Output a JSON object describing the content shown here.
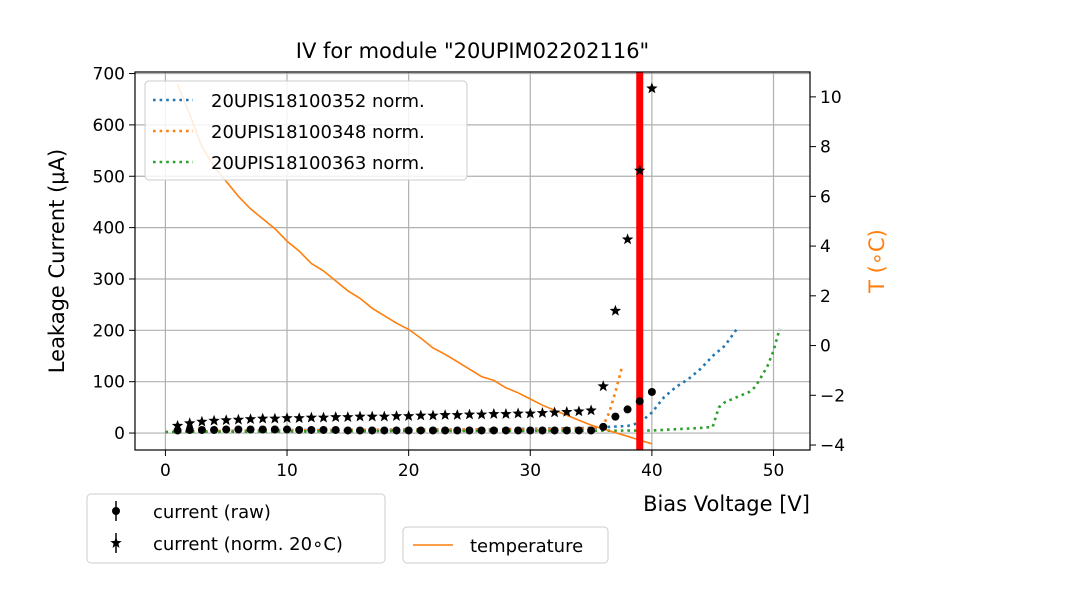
{
  "chart_data": {
    "type": "scatter",
    "title": "IV for module \"20UPIM02202116\"",
    "xlabel": "Bias Voltage [V]",
    "ylabel": "Leakage Current (μA)",
    "y2label": "T (∘C)",
    "xlim": [
      -2.5,
      53
    ],
    "ylim": [
      -33,
      703
    ],
    "y2lim": [
      -4.2,
      11.0
    ],
    "xticks": [
      0,
      10,
      20,
      30,
      40,
      50
    ],
    "yticks": [
      0,
      100,
      200,
      300,
      400,
      500,
      600,
      700
    ],
    "y2ticks": [
      -4,
      -2,
      0,
      2,
      4,
      6,
      8,
      10
    ],
    "grid": true,
    "breakdown_voltage_marker": {
      "x": 39,
      "color": "#ff0000"
    },
    "colors": {
      "blue": "#1f77b4",
      "orange": "#ff7f0e",
      "green": "#2ca02c",
      "black": "#000000",
      "red": "#ff0000"
    },
    "series": [
      {
        "name": "current (raw)",
        "kind": "points",
        "marker": "circle",
        "color": "#000000",
        "x": [
          1,
          2,
          3,
          4,
          5,
          6,
          7,
          8,
          9,
          10,
          11,
          12,
          13,
          14,
          15,
          16,
          17,
          18,
          19,
          20,
          21,
          22,
          23,
          24,
          25,
          26,
          27,
          28,
          29,
          30,
          31,
          32,
          33,
          34,
          35,
          36,
          37,
          38,
          39,
          40
        ],
        "y": [
          5,
          6,
          6,
          6,
          7,
          7,
          7,
          7,
          7,
          7,
          6,
          6,
          6,
          6,
          5,
          5,
          5,
          5,
          5,
          5,
          5,
          5,
          5,
          5,
          5,
          5,
          5,
          5,
          5,
          5,
          5,
          5,
          5,
          5,
          5,
          12,
          32,
          46,
          62,
          80
        ]
      },
      {
        "name": "current (norm. 20∘C)",
        "kind": "points",
        "marker": "star",
        "color": "#000000",
        "x": [
          1,
          2,
          3,
          4,
          5,
          6,
          7,
          8,
          9,
          10,
          11,
          12,
          13,
          14,
          15,
          16,
          17,
          18,
          19,
          20,
          21,
          22,
          23,
          24,
          25,
          26,
          27,
          28,
          29,
          30,
          31,
          32,
          33,
          34,
          35,
          36,
          37,
          38,
          39,
          40
        ],
        "y": [
          14,
          19,
          22,
          24,
          25,
          26,
          27,
          28,
          28,
          29,
          29,
          30,
          30,
          31,
          31,
          32,
          32,
          32,
          33,
          33,
          34,
          34,
          35,
          35,
          36,
          36,
          37,
          37,
          38,
          38,
          39,
          40,
          41,
          42,
          44,
          91,
          238,
          377,
          511,
          671
        ]
      },
      {
        "name": "20UPIS18100352 norm.",
        "kind": "line",
        "style": "dotted",
        "color": "#1f77b4",
        "x": [
          0,
          5,
          10,
          15,
          20,
          25,
          30,
          35,
          38,
          39,
          40,
          41,
          42,
          43,
          44,
          45,
          46,
          47
        ],
        "y": [
          2,
          4,
          6,
          6,
          7,
          7,
          8,
          10,
          14,
          20,
          40,
          70,
          90,
          105,
          125,
          150,
          170,
          203
        ]
      },
      {
        "name": "20UPIS18100348 norm.",
        "kind": "line",
        "style": "dotted",
        "color": "#ff7f0e",
        "x": [
          0,
          5,
          10,
          15,
          20,
          25,
          30,
          35,
          36,
          36.5,
          37,
          37.5
        ],
        "y": [
          2,
          4,
          5,
          6,
          6,
          7,
          7,
          9,
          15,
          40,
          80,
          125
        ]
      },
      {
        "name": "20UPIS18100363 norm.",
        "kind": "line",
        "style": "dotted",
        "color": "#2ca02c",
        "x": [
          0,
          10,
          20,
          30,
          40,
          44,
          45,
          45.5,
          46,
          47,
          48,
          48.5,
          49,
          49.5,
          50,
          50.5
        ],
        "y": [
          2,
          3,
          4,
          4,
          5,
          10,
          12,
          50,
          60,
          70,
          80,
          90,
          110,
          130,
          160,
          203
        ]
      },
      {
        "name": "temperature",
        "kind": "line",
        "style": "solid",
        "color": "#ff7f0e",
        "axis": "y2",
        "x": [
          1,
          2,
          3,
          4,
          5,
          6,
          7,
          8,
          9,
          10,
          11,
          12,
          13,
          14,
          15,
          16,
          17,
          18,
          19,
          20,
          21,
          22,
          23,
          24,
          25,
          26,
          27,
          28,
          29,
          30,
          31,
          32,
          33,
          34,
          35,
          36,
          37,
          38,
          39,
          40
        ],
        "y": [
          10.5,
          9.3,
          8.0,
          7.2,
          6.6,
          6.0,
          5.5,
          5.1,
          4.7,
          4.2,
          3.8,
          3.3,
          3.0,
          2.6,
          2.2,
          1.9,
          1.5,
          1.2,
          0.9,
          0.65,
          0.3,
          -0.1,
          -0.35,
          -0.65,
          -0.95,
          -1.25,
          -1.4,
          -1.7,
          -1.9,
          -2.15,
          -2.4,
          -2.6,
          -2.8,
          -3.0,
          -3.2,
          -3.35,
          -3.5,
          -3.65,
          -3.8,
          -3.95
        ]
      }
    ],
    "legends": {
      "upper": [
        "20UPIS18100352 norm.",
        "20UPIS18100348 norm.",
        "20UPIS18100363 norm."
      ],
      "lower_left": [
        "current (raw)",
        "current (norm. 20∘C)"
      ],
      "lower_right": [
        "temperature"
      ]
    }
  }
}
